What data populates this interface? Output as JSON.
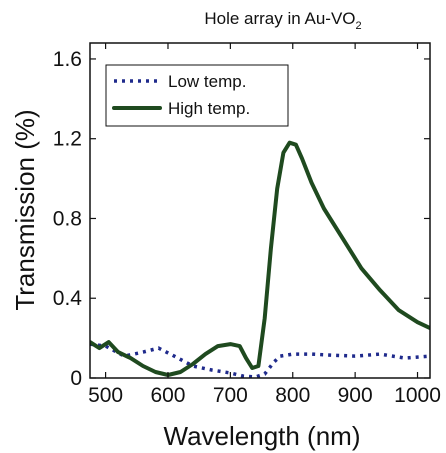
{
  "chart_data": {
    "type": "line",
    "title": "Hole array in Au-VO",
    "title_subscript": "2",
    "xlabel": "Wavelength (nm)",
    "ylabel": "Transmission (%)",
    "xlim": [
      475,
      1020
    ],
    "ylim": [
      0,
      1.68
    ],
    "xticks": [
      500,
      600,
      700,
      800,
      900,
      1000
    ],
    "xtick_labels": [
      "500",
      "600",
      "700",
      "800",
      "900",
      "1000"
    ],
    "yticks": [
      0,
      0.4,
      0.8,
      1.2,
      1.6
    ],
    "ytick_labels": [
      "0",
      "0.4",
      "0.8",
      "1.2",
      "1.6"
    ],
    "grid": false,
    "legend_position": "top-left",
    "series": [
      {
        "name": "Low temp.",
        "color": "#1f2a8c",
        "style": "dotted",
        "x": [
          475,
          500,
          530,
          560,
          585,
          610,
          640,
          670,
          700,
          720,
          740,
          755,
          770,
          780,
          800,
          830,
          860,
          900,
          940,
          980,
          1020
        ],
        "y": [
          0.17,
          0.16,
          0.11,
          0.13,
          0.15,
          0.11,
          0.06,
          0.04,
          0.025,
          0.01,
          0.005,
          0.02,
          0.08,
          0.11,
          0.12,
          0.12,
          0.115,
          0.11,
          0.12,
          0.1,
          0.11
        ]
      },
      {
        "name": "High temp.",
        "color": "#1f4a1f",
        "style": "solid",
        "x": [
          475,
          490,
          505,
          520,
          540,
          560,
          580,
          600,
          620,
          640,
          660,
          680,
          700,
          715,
          725,
          735,
          745,
          755,
          765,
          775,
          785,
          795,
          805,
          815,
          830,
          850,
          880,
          910,
          940,
          970,
          1000,
          1020
        ],
        "y": [
          0.18,
          0.15,
          0.18,
          0.13,
          0.1,
          0.06,
          0.03,
          0.015,
          0.03,
          0.07,
          0.12,
          0.16,
          0.17,
          0.16,
          0.1,
          0.05,
          0.06,
          0.3,
          0.65,
          0.95,
          1.13,
          1.18,
          1.17,
          1.1,
          0.98,
          0.85,
          0.7,
          0.55,
          0.44,
          0.34,
          0.28,
          0.25
        ]
      }
    ]
  }
}
